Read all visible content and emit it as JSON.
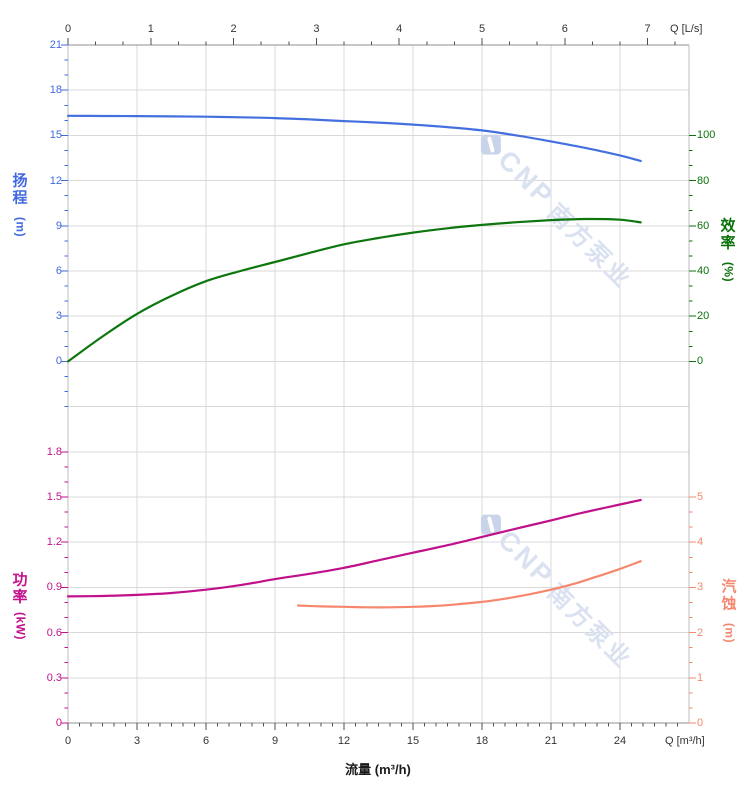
{
  "chart": {
    "top_axis": {
      "title": "Q [L/s]",
      "ticks": [
        0,
        1,
        2,
        3,
        4,
        5,
        6,
        7
      ]
    },
    "bottom_axis": {
      "title": "Q [m³/h]",
      "xlabel": "流量 (m³/h)",
      "ticks": [
        0,
        3,
        6,
        9,
        12,
        15,
        18,
        21,
        24
      ]
    },
    "y_axes": {
      "head": {
        "title_chars": "扬程",
        "unit": "(m)",
        "ticks": [
          21,
          18,
          15,
          12,
          9,
          6,
          3,
          0
        ],
        "color": "#4169E1"
      },
      "efficiency": {
        "title_chars": "效率",
        "unit": "(%)",
        "ticks": [
          100,
          80,
          60,
          40,
          20,
          0
        ],
        "color": "#0B720B"
      },
      "power": {
        "title_chars": "功率",
        "unit": "(kW)",
        "ticks": [
          1.8,
          1.5,
          1.2,
          0.9,
          0.6,
          0.3,
          0
        ],
        "color": "#C2138C"
      },
      "npsh": {
        "title_chars": "汽蚀",
        "unit": "(m)",
        "ticks": [
          5,
          4,
          3,
          2,
          1,
          0
        ],
        "color": "#F5876F"
      }
    },
    "watermark": {
      "latin": "CNP",
      "cjk": "南方泵业"
    },
    "colors": {
      "grid": "#D8D8D8",
      "border_side": "#BDBDBD",
      "border_topbot": "#8F8F8F",
      "xy_tick": "#4D4D4D"
    }
  },
  "chart_data": {
    "type": "line",
    "x_label": "流量 (m³/h)",
    "x_range_m3h": [
      0,
      27
    ],
    "secondary_x_label": "Q [L/s]",
    "secondary_x_range_ls": [
      0,
      7.5
    ],
    "grid": true,
    "legend": "none",
    "series": [
      {
        "name": "扬程 (Head)",
        "axis": "head",
        "unit": "m",
        "color": "#4470DF",
        "axis_range": [
          0,
          21
        ],
        "x": [
          0,
          1.5,
          3,
          4.5,
          6,
          7.5,
          9,
          10.5,
          12,
          13.5,
          15,
          16.5,
          18,
          19.5,
          21,
          22.5,
          24,
          24.9
        ],
        "y": [
          16.3,
          16.29,
          16.28,
          16.26,
          16.24,
          16.2,
          16.15,
          16.06,
          15.95,
          15.85,
          15.72,
          15.55,
          15.33,
          15.0,
          14.6,
          14.17,
          13.67,
          13.3
        ]
      },
      {
        "name": "效率 (Efficiency)",
        "axis": "eff",
        "unit": "%",
        "color": "#0E760E",
        "axis_range": [
          0,
          100
        ],
        "x": [
          0,
          1.5,
          3,
          4.5,
          6,
          7.5,
          9,
          10.5,
          12,
          13.5,
          15,
          16.5,
          18,
          19.5,
          21,
          22.5,
          24,
          24.9
        ],
        "y": [
          0,
          11,
          21,
          29,
          35.5,
          40,
          44,
          48,
          51.8,
          54.6,
          57,
          58.9,
          60.4,
          61.6,
          62.5,
          63,
          62.7,
          61.5
        ]
      },
      {
        "name": "功率 (Power)",
        "axis": "power",
        "unit": "kW",
        "color": "#C0118A",
        "axis_range": [
          0,
          1.8
        ],
        "x": [
          0,
          1.5,
          3,
          4.5,
          6,
          7.5,
          9,
          10.5,
          12,
          13.5,
          15,
          16.5,
          18,
          19.5,
          21,
          22.5,
          24,
          24.9
        ],
        "y": [
          0.84,
          0.843,
          0.85,
          0.863,
          0.885,
          0.915,
          0.955,
          0.99,
          1.03,
          1.08,
          1.13,
          1.18,
          1.235,
          1.29,
          1.345,
          1.4,
          1.45,
          1.48
        ]
      },
      {
        "name": "汽蚀 (NPSH)",
        "axis": "npsh",
        "unit": "m",
        "color": "#F6876D",
        "axis_range": [
          0,
          5
        ],
        "x": [
          10,
          11,
          12,
          13,
          14,
          15,
          16,
          17,
          18,
          19,
          20,
          21,
          22,
          23,
          24,
          24.9
        ],
        "y": [
          2.6,
          2.58,
          2.57,
          2.56,
          2.56,
          2.57,
          2.59,
          2.63,
          2.68,
          2.75,
          2.84,
          2.95,
          3.08,
          3.24,
          3.41,
          3.58
        ]
      }
    ]
  }
}
